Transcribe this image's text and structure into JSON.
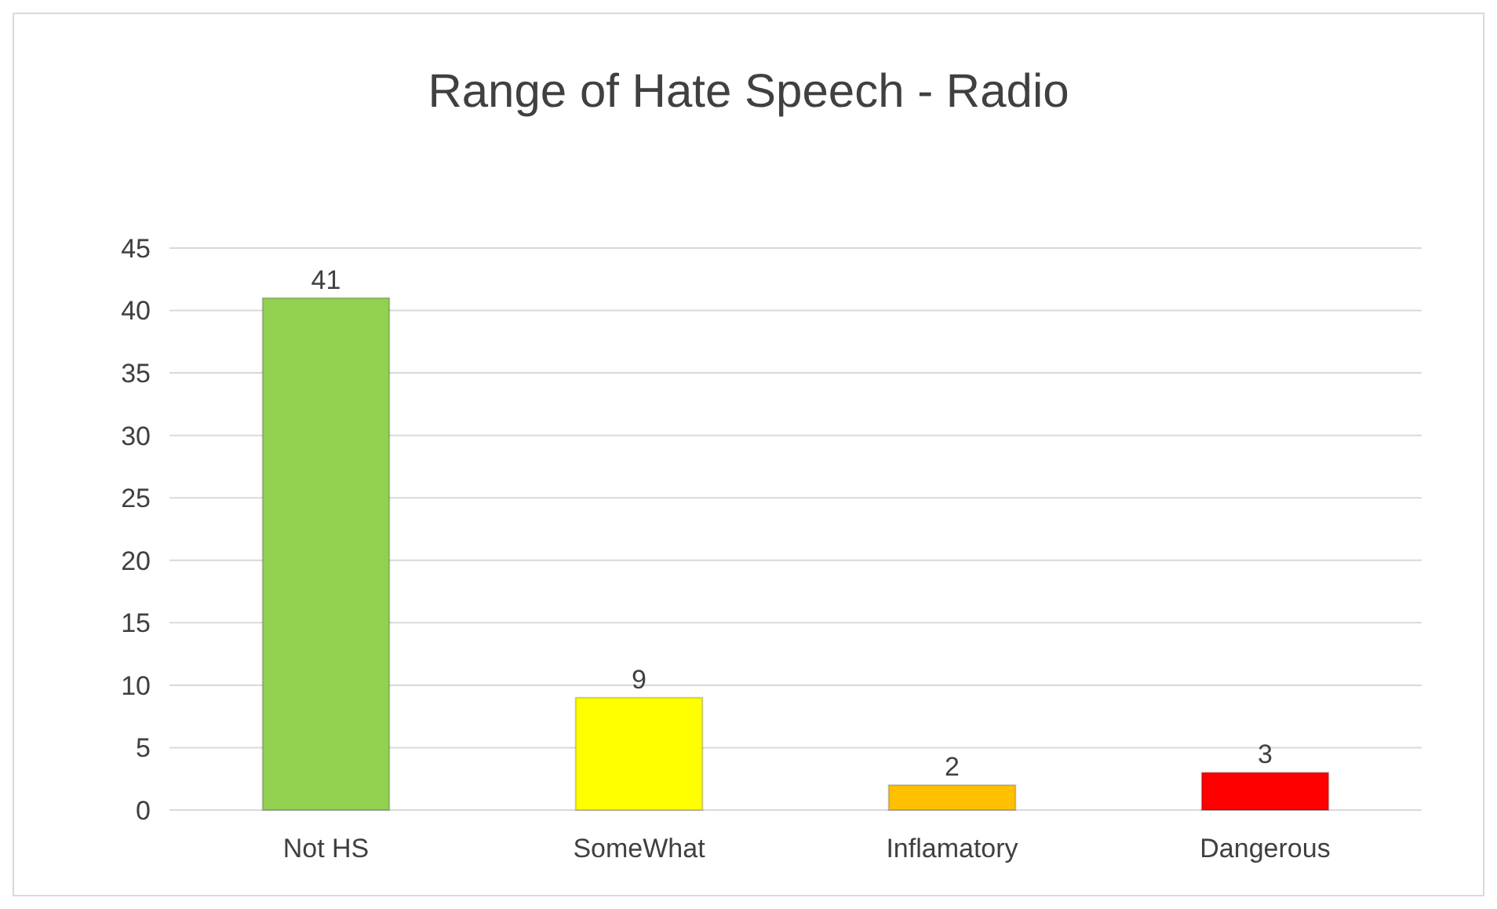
{
  "chart_data": {
    "type": "bar",
    "title": "Range of Hate Speech - Radio",
    "categories": [
      "Not HS",
      "SomeWhat",
      "Inflamatory",
      "Dangerous"
    ],
    "values": [
      41,
      9,
      2,
      3
    ],
    "colors": [
      "#92d050",
      "#ffff00",
      "#ffc000",
      "#ff0000"
    ],
    "ylim": [
      0,
      45
    ],
    "yticks": [
      0,
      5,
      10,
      15,
      20,
      25,
      30,
      35,
      40,
      45
    ],
    "grid": "y",
    "data_labels": true
  }
}
